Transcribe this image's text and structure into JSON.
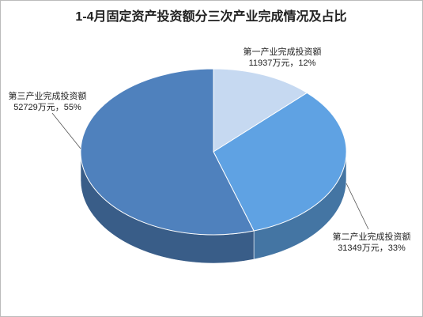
{
  "chart_data": {
    "type": "pie",
    "title": "1-4月固定资产投资额分三次产业完成情况及占比",
    "categories": [
      "第一产业完成投资额",
      "第二产业完成投资额",
      "第三产业完成投资额"
    ],
    "values": [
      11937,
      31349,
      52729
    ],
    "value_labels": [
      "11937万元，12%",
      "31349万元，33%",
      "52729万元，55%"
    ],
    "colors": [
      "#c6d9f1",
      "#5fa2e3",
      "#4f81bd"
    ]
  }
}
